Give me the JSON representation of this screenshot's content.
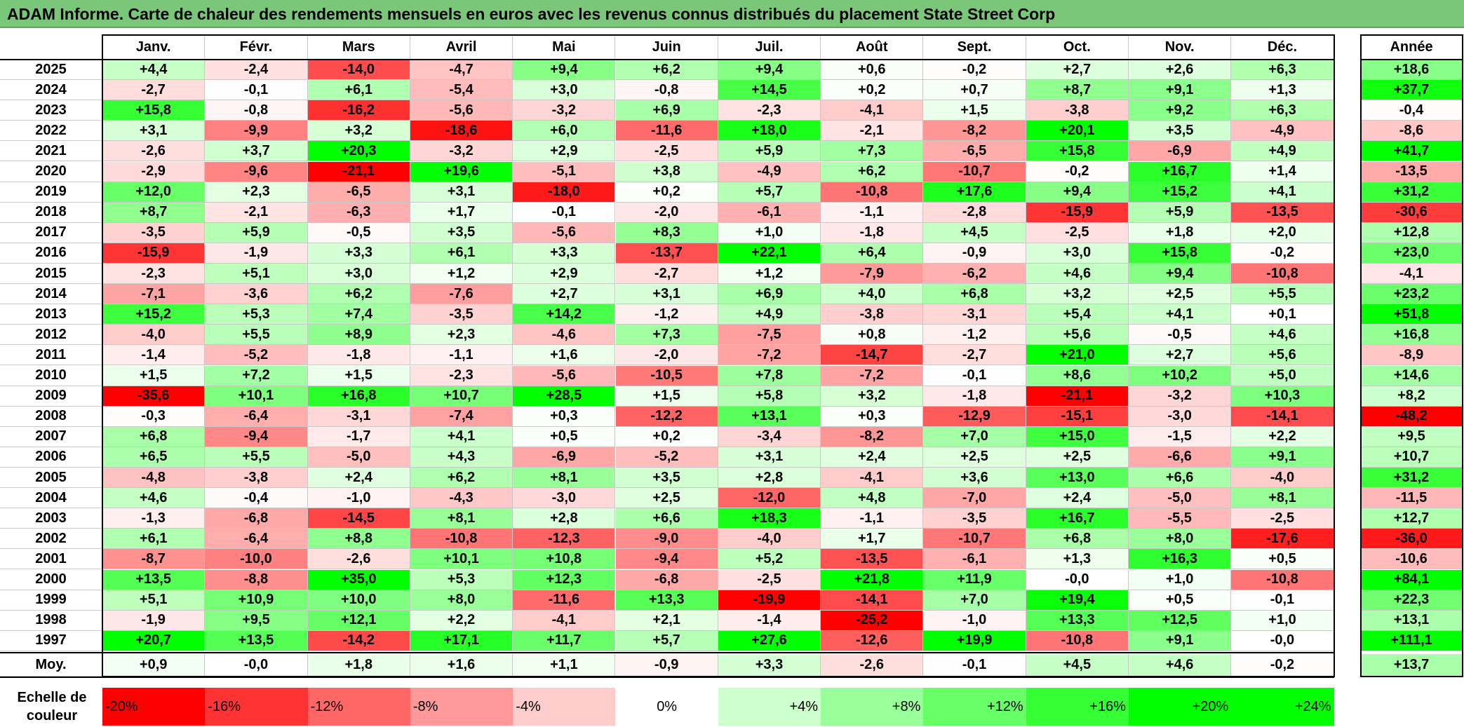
{
  "title": "ADAM Informe. Carte de chaleur des rendements mensuels en euros avec les revenus connus distribués du placement State Street Corp",
  "chart_data": {
    "type": "heatmap",
    "columns": [
      "Janv.",
      "Févr.",
      "Mars",
      "Avril",
      "Mai",
      "Juin",
      "Juil.",
      "Août",
      "Sept.",
      "Oct.",
      "Nov.",
      "Déc."
    ],
    "annual_header": "Année",
    "rows": [
      {
        "year": "2025",
        "values": [
          "+4,4",
          "-2,4",
          "-14,0",
          "-4,7",
          "+9,4",
          "+6,2",
          "+9,4",
          "+0,6",
          "-0,2",
          "+2,7",
          "+2,6",
          "+6,3"
        ],
        "annual": "+18,6"
      },
      {
        "year": "2024",
        "values": [
          "-2,7",
          "-0,1",
          "+6,1",
          "-5,4",
          "+3,0",
          "-0,8",
          "+14,5",
          "+0,2",
          "+0,7",
          "+8,7",
          "+9,1",
          "+1,3"
        ],
        "annual": "+37,7"
      },
      {
        "year": "2023",
        "values": [
          "+15,8",
          "-0,8",
          "-16,2",
          "-5,6",
          "-3,2",
          "+6,9",
          "-2,3",
          "-4,1",
          "+1,5",
          "-3,8",
          "+9,2",
          "+6,3"
        ],
        "annual": "-0,4"
      },
      {
        "year": "2022",
        "values": [
          "+3,1",
          "-9,9",
          "+3,2",
          "-18,6",
          "+6,0",
          "-11,6",
          "+18,0",
          "-2,1",
          "-8,2",
          "+20,1",
          "+3,5",
          "-4,9"
        ],
        "annual": "-8,6"
      },
      {
        "year": "2021",
        "values": [
          "-2,6",
          "+3,7",
          "+20,3",
          "-3,2",
          "+2,9",
          "-2,5",
          "+5,9",
          "+7,3",
          "-6,5",
          "+15,8",
          "-6,9",
          "+4,9"
        ],
        "annual": "+41,7"
      },
      {
        "year": "2020",
        "values": [
          "-2,9",
          "-9,6",
          "-21,1",
          "+19,6",
          "-5,1",
          "+3,8",
          "-4,9",
          "+6,2",
          "-10,7",
          "-0,2",
          "+16,7",
          "+1,4"
        ],
        "annual": "-13,5"
      },
      {
        "year": "2019",
        "values": [
          "+12,0",
          "+2,3",
          "-6,5",
          "+3,1",
          "-18,0",
          "+0,2",
          "+5,7",
          "-10,8",
          "+17,6",
          "+9,4",
          "+15,2",
          "+4,1"
        ],
        "annual": "+31,2"
      },
      {
        "year": "2018",
        "values": [
          "+8,7",
          "-2,1",
          "-6,3",
          "+1,7",
          "-0,1",
          "-2,0",
          "-6,1",
          "-1,1",
          "-2,8",
          "-15,9",
          "+5,9",
          "-13,5"
        ],
        "annual": "-30,6"
      },
      {
        "year": "2017",
        "values": [
          "-3,5",
          "+5,9",
          "-0,5",
          "+3,5",
          "-5,6",
          "+8,3",
          "+1,0",
          "-1,8",
          "+4,5",
          "-2,5",
          "+1,8",
          "+2,0"
        ],
        "annual": "+12,8"
      },
      {
        "year": "2016",
        "values": [
          "-15,9",
          "-1,9",
          "+3,3",
          "+6,1",
          "+3,3",
          "-13,7",
          "+22,1",
          "+6,4",
          "-0,9",
          "+3,0",
          "+15,8",
          "-0,2"
        ],
        "annual": "+23,0"
      },
      {
        "year": "2015",
        "values": [
          "-2,3",
          "+5,1",
          "+3,0",
          "+1,2",
          "+2,9",
          "-2,7",
          "+1,2",
          "-7,9",
          "-6,2",
          "+4,6",
          "+9,4",
          "-10,8"
        ],
        "annual": "-4,1"
      },
      {
        "year": "2014",
        "values": [
          "-7,1",
          "-3,6",
          "+6,2",
          "-7,6",
          "+2,7",
          "+3,1",
          "+6,9",
          "+4,0",
          "+6,8",
          "+3,2",
          "+2,5",
          "+5,5"
        ],
        "annual": "+23,2"
      },
      {
        "year": "2013",
        "values": [
          "+15,2",
          "+5,3",
          "+7,4",
          "-3,5",
          "+14,2",
          "-1,2",
          "+4,9",
          "-3,8",
          "-3,1",
          "+5,4",
          "+4,1",
          "+0,1"
        ],
        "annual": "+51,8"
      },
      {
        "year": "2012",
        "values": [
          "-4,0",
          "+5,5",
          "+8,9",
          "+2,3",
          "-4,6",
          "+7,3",
          "-7,5",
          "+0,8",
          "-1,2",
          "+5,6",
          "-0,5",
          "+4,6"
        ],
        "annual": "+16,8"
      },
      {
        "year": "2011",
        "values": [
          "-1,4",
          "-5,2",
          "-1,8",
          "-1,1",
          "+1,6",
          "-2,0",
          "-7,2",
          "-14,7",
          "-2,7",
          "+21,0",
          "+2,7",
          "+5,6"
        ],
        "annual": "-8,9"
      },
      {
        "year": "2010",
        "values": [
          "+1,5",
          "+7,2",
          "+1,5",
          "-2,3",
          "-5,6",
          "-10,5",
          "+7,8",
          "-7,2",
          "-0,1",
          "+8,6",
          "+10,2",
          "+5,0"
        ],
        "annual": "+14,6"
      },
      {
        "year": "2009",
        "values": [
          "-35,6",
          "+10,1",
          "+16,8",
          "+10,7",
          "+28,5",
          "+1,5",
          "+5,8",
          "+3,2",
          "-1,8",
          "-21,1",
          "-3,2",
          "+10,3"
        ],
        "annual": "+8,2"
      },
      {
        "year": "2008",
        "values": [
          "-0,3",
          "-6,4",
          "-3,1",
          "-7,4",
          "+0,3",
          "-12,2",
          "+13,1",
          "+0,3",
          "-12,9",
          "-15,1",
          "-3,0",
          "-14,1"
        ],
        "annual": "-48,2"
      },
      {
        "year": "2007",
        "values": [
          "+6,8",
          "-9,4",
          "-1,7",
          "+4,1",
          "+0,5",
          "+0,2",
          "-3,4",
          "-8,2",
          "+7,0",
          "+15,0",
          "-1,5",
          "+2,2"
        ],
        "annual": "+9,5"
      },
      {
        "year": "2006",
        "values": [
          "+6,5",
          "+5,5",
          "-5,0",
          "+4,3",
          "-6,9",
          "-5,2",
          "+3,1",
          "+2,4",
          "+2,5",
          "+2,5",
          "-6,6",
          "+9,1"
        ],
        "annual": "+10,7"
      },
      {
        "year": "2005",
        "values": [
          "-4,8",
          "-3,8",
          "+2,4",
          "+6,2",
          "+8,1",
          "+3,5",
          "+2,8",
          "-4,1",
          "+3,6",
          "+13,0",
          "+6,6",
          "-4,0"
        ],
        "annual": "+31,2"
      },
      {
        "year": "2004",
        "values": [
          "+4,6",
          "-0,4",
          "-1,0",
          "-4,3",
          "-3,0",
          "+2,5",
          "-12,0",
          "+4,8",
          "-7,0",
          "+2,4",
          "-5,0",
          "+8,1"
        ],
        "annual": "-11,5"
      },
      {
        "year": "2003",
        "values": [
          "-1,3",
          "-6,8",
          "-14,5",
          "+8,1",
          "+2,8",
          "+6,6",
          "+18,3",
          "-1,1",
          "-3,5",
          "+16,7",
          "-5,5",
          "-2,5"
        ],
        "annual": "+12,7"
      },
      {
        "year": "2002",
        "values": [
          "+6,1",
          "-6,4",
          "+8,8",
          "-10,8",
          "-12,3",
          "-9,0",
          "-4,0",
          "+1,7",
          "-10,7",
          "+6,8",
          "+8,0",
          "-17,6"
        ],
        "annual": "-36,0"
      },
      {
        "year": "2001",
        "values": [
          "-8,7",
          "-10,0",
          "-2,6",
          "+10,1",
          "+10,8",
          "-9,4",
          "+5,2",
          "-13,5",
          "-6,1",
          "+1,3",
          "+16,3",
          "+0,5"
        ],
        "annual": "-10,6"
      },
      {
        "year": "2000",
        "values": [
          "+13,5",
          "-8,8",
          "+35,0",
          "+5,3",
          "+12,3",
          "-6,8",
          "-2,5",
          "+21,8",
          "+11,9",
          "-0,0",
          "+1,0",
          "-10,8"
        ],
        "annual": "+84,1"
      },
      {
        "year": "1999",
        "values": [
          "+5,1",
          "+10,9",
          "+10,0",
          "+8,0",
          "-11,6",
          "+13,3",
          "-19,9",
          "-14,1",
          "+7,0",
          "+19,4",
          "+0,5",
          "-0,1"
        ],
        "annual": "+22,3"
      },
      {
        "year": "1998",
        "values": [
          "-1,9",
          "+9,5",
          "+12,1",
          "+2,2",
          "-4,1",
          "+2,1",
          "-1,4",
          "-25,2",
          "-1,0",
          "+13,3",
          "+12,5",
          "+1,0"
        ],
        "annual": "+13,1"
      },
      {
        "year": "1997",
        "values": [
          "+20,7",
          "+13,5",
          "-14,2",
          "+17,1",
          "+11,7",
          "+5,7",
          "+27,6",
          "-12,6",
          "+19,9",
          "-10,8",
          "+9,1",
          "-0,0"
        ],
        "annual": "+111,1"
      }
    ],
    "average": {
      "label": "Moy.",
      "values": [
        "+0,9",
        "-0,0",
        "+1,8",
        "+1,6",
        "+1,1",
        "-0,9",
        "+3,3",
        "-2,6",
        "-0,1",
        "+4,5",
        "+4,6",
        "-0,2"
      ],
      "annual": "+13,7"
    },
    "scale": {
      "label_line1": "Echelle de",
      "label_line2": "couleur",
      "labels": [
        "-20%",
        "-16%",
        "-12%",
        "-8%",
        "-4%",
        "0%",
        "+4%",
        "+8%",
        "+12%",
        "+16%",
        "+20%",
        "+24%"
      ],
      "values": [
        -20,
        -16,
        -12,
        -8,
        -4,
        0,
        4,
        8,
        12,
        16,
        20,
        24
      ]
    },
    "colors": {
      "negative": "#ff0000",
      "positive": "#00ff00",
      "neutral": "#ffffff",
      "title_bar": "#7ac77a"
    }
  }
}
